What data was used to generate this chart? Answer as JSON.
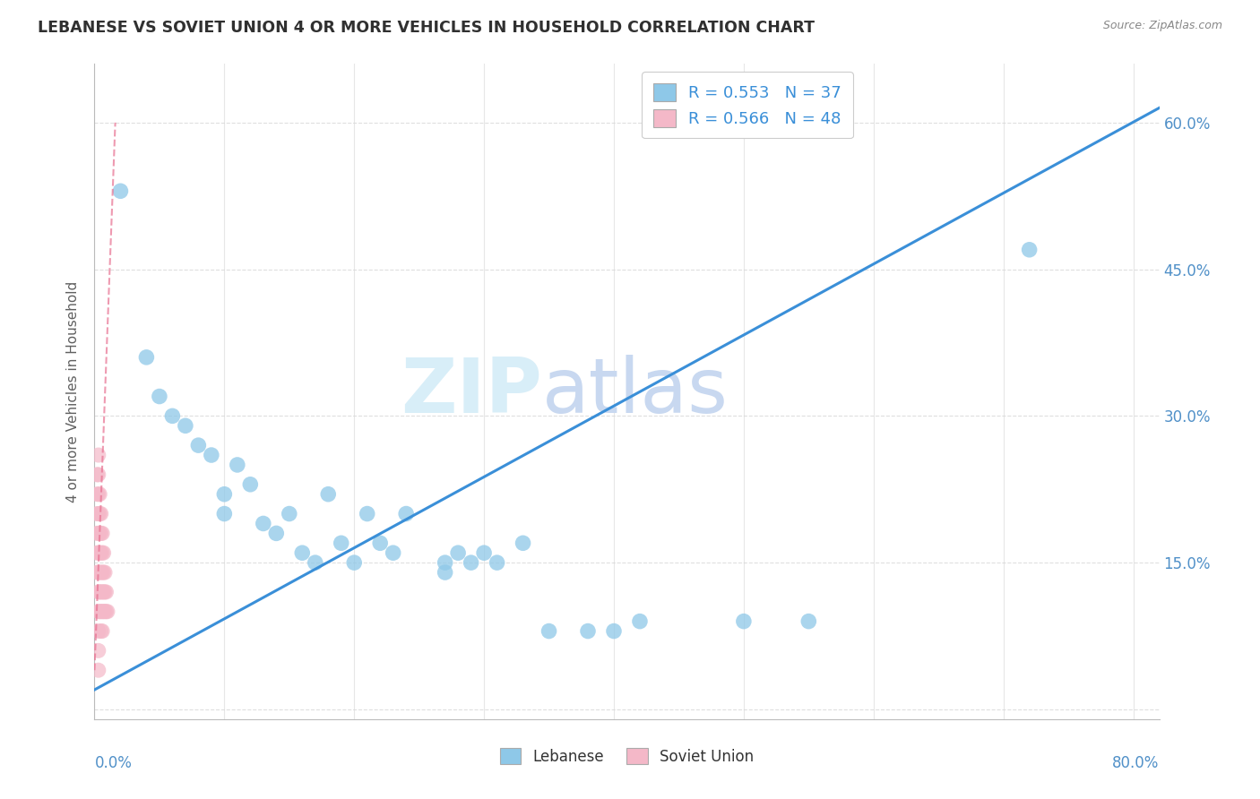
{
  "title": "LEBANESE VS SOVIET UNION 4 OR MORE VEHICLES IN HOUSEHOLD CORRELATION CHART",
  "source": "Source: ZipAtlas.com",
  "ylabel": "4 or more Vehicles in Household",
  "yticks": [
    0.0,
    0.15,
    0.3,
    0.45,
    0.6
  ],
  "ytick_labels": [
    "",
    "15.0%",
    "30.0%",
    "45.0%",
    "60.0%"
  ],
  "xticks": [
    0.0,
    0.1,
    0.2,
    0.3,
    0.4,
    0.5,
    0.6,
    0.7,
    0.8
  ],
  "xlim": [
    0.0,
    0.82
  ],
  "ylim": [
    -0.01,
    0.66
  ],
  "watermark_zip": "ZIP",
  "watermark_atlas": "atlas",
  "legend_entry_1": "R = 0.553   N = 37",
  "legend_entry_2": "R = 0.566   N = 48",
  "legend_labels_bottom": [
    "Lebanese",
    "Soviet Union"
  ],
  "lebanese_x": [
    0.02,
    0.04,
    0.05,
    0.06,
    0.07,
    0.08,
    0.09,
    0.1,
    0.1,
    0.11,
    0.12,
    0.13,
    0.14,
    0.15,
    0.16,
    0.17,
    0.18,
    0.19,
    0.2,
    0.21,
    0.22,
    0.23,
    0.24,
    0.27,
    0.27,
    0.28,
    0.29,
    0.3,
    0.31,
    0.33,
    0.35,
    0.38,
    0.4,
    0.42,
    0.5,
    0.55,
    0.72
  ],
  "lebanese_y": [
    0.53,
    0.36,
    0.32,
    0.3,
    0.29,
    0.27,
    0.26,
    0.22,
    0.2,
    0.25,
    0.23,
    0.19,
    0.18,
    0.2,
    0.16,
    0.15,
    0.22,
    0.17,
    0.15,
    0.2,
    0.17,
    0.16,
    0.2,
    0.15,
    0.14,
    0.16,
    0.15,
    0.16,
    0.15,
    0.17,
    0.08,
    0.08,
    0.08,
    0.09,
    0.09,
    0.09,
    0.47
  ],
  "soviet_x": [
    0.002,
    0.002,
    0.002,
    0.002,
    0.002,
    0.002,
    0.003,
    0.003,
    0.003,
    0.003,
    0.003,
    0.003,
    0.003,
    0.003,
    0.003,
    0.003,
    0.003,
    0.003,
    0.004,
    0.004,
    0.004,
    0.004,
    0.004,
    0.004,
    0.004,
    0.005,
    0.005,
    0.005,
    0.005,
    0.005,
    0.005,
    0.005,
    0.006,
    0.006,
    0.006,
    0.006,
    0.006,
    0.006,
    0.007,
    0.007,
    0.007,
    0.007,
    0.008,
    0.008,
    0.008,
    0.009,
    0.009,
    0.01
  ],
  "soviet_y": [
    0.24,
    0.22,
    0.2,
    0.18,
    0.16,
    0.14,
    0.26,
    0.24,
    0.22,
    0.2,
    0.18,
    0.16,
    0.14,
    0.12,
    0.1,
    0.08,
    0.06,
    0.04,
    0.22,
    0.2,
    0.18,
    0.16,
    0.14,
    0.12,
    0.1,
    0.2,
    0.18,
    0.16,
    0.14,
    0.12,
    0.1,
    0.08,
    0.18,
    0.16,
    0.14,
    0.12,
    0.1,
    0.08,
    0.16,
    0.14,
    0.12,
    0.1,
    0.14,
    0.12,
    0.1,
    0.12,
    0.1,
    0.1
  ],
  "leb_trend_x0": 0.0,
  "leb_trend_x1": 0.82,
  "leb_trend_y0": 0.02,
  "leb_trend_y1": 0.615,
  "sov_trend_x0": 0.0,
  "sov_trend_x1": 0.016,
  "sov_trend_y0": 0.04,
  "sov_trend_y1": 0.6,
  "lebanese_color": "#8ec8e8",
  "soviet_color": "#f4b8c8",
  "trendline_blue_color": "#3a8fd8",
  "trendline_pink_color": "#e87090",
  "background_color": "#ffffff",
  "grid_color": "#d8d8d8",
  "title_color": "#303030",
  "axis_label_color": "#606060",
  "tick_label_color": "#5090c8",
  "watermark_color": "#d8eef8",
  "watermark_color2": "#c8d8f0"
}
